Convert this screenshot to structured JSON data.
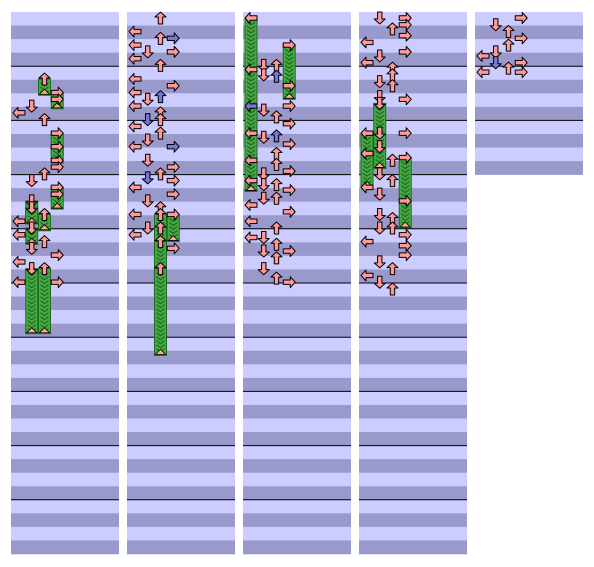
{
  "chart_data": {
    "type": "step-chart",
    "lanes": [
      "left",
      "down",
      "up",
      "right"
    ],
    "measures_per_column": 10,
    "rows_per_measure": 4,
    "colors": {
      "stripe_light": "#ccccff",
      "stripe_dark": "#9999cc",
      "quarter_note": "#ff9999",
      "eighth_note": "#7777dd",
      "hold_body": "#44aa44",
      "hold_tail": "#ffaa88",
      "measure_line": "#000000"
    },
    "columns": [
      {
        "measures": 10,
        "notes": [
          {
            "row": 4.5,
            "lane": "up",
            "kind": "hold",
            "length": 0.3
          },
          {
            "row": 5.5,
            "lane": "right",
            "kind": "hold",
            "length": 0.3
          },
          {
            "row": 6.0,
            "lane": "right"
          },
          {
            "row": 6.5,
            "lane": "down"
          },
          {
            "row": 7.0,
            "lane": "left"
          },
          {
            "row": 7.5,
            "lane": "up"
          },
          {
            "row": 8.5,
            "lane": "right",
            "kind": "hold",
            "length": 0.4
          },
          {
            "row": 9.5,
            "lane": "right",
            "kind": "hold",
            "length": 0.3
          },
          {
            "row": 10.5,
            "lane": "right"
          },
          {
            "row": 11.0,
            "lane": "right"
          },
          {
            "row": 11.5,
            "lane": "up"
          },
          {
            "row": 12.0,
            "lane": "down"
          },
          {
            "row": 12.5,
            "lane": "right",
            "kind": "hold",
            "length": 0.4
          },
          {
            "row": 13.0,
            "lane": "right"
          },
          {
            "row": 13.5,
            "lane": "down",
            "kind": "hold",
            "length": 0.3
          },
          {
            "row": 14.0,
            "lane": "down",
            "kind": "hold",
            "length": 0.3
          },
          {
            "row": 14.5,
            "lane": "up",
            "kind": "hold",
            "length": 0.3
          },
          {
            "row": 15.0,
            "lane": "left"
          },
          {
            "row": 15.5,
            "lane": "down",
            "kind": "hold",
            "length": 0.3
          },
          {
            "row": 16.0,
            "lane": "left"
          },
          {
            "row": 16.5,
            "lane": "up"
          },
          {
            "row": 17.0,
            "lane": "down"
          },
          {
            "row": 17.5,
            "lane": "right"
          },
          {
            "row": 18.0,
            "lane": "left"
          },
          {
            "row": 18.5,
            "lane": "down",
            "kind": "hold",
            "length": 1.2
          },
          {
            "row": 18.5,
            "lane": "up",
            "kind": "hold",
            "length": 1.2
          },
          {
            "row": 19.5,
            "lane": "left"
          },
          {
            "row": 19.5,
            "lane": "right"
          }
        ]
      },
      {
        "measures": 10,
        "notes": [
          {
            "row": 0.0,
            "lane": "up"
          },
          {
            "row": 1.0,
            "lane": "left"
          },
          {
            "row": 1.5,
            "lane": "up"
          },
          {
            "row": 1.5,
            "lane": "right",
            "eighth": true
          },
          {
            "row": 2.0,
            "lane": "left"
          },
          {
            "row": 2.5,
            "lane": "down"
          },
          {
            "row": 2.5,
            "lane": "right"
          },
          {
            "row": 3.0,
            "lane": "left"
          },
          {
            "row": 3.5,
            "lane": "up"
          },
          {
            "row": 4.5,
            "lane": "left"
          },
          {
            "row": 5.0,
            "lane": "right"
          },
          {
            "row": 5.5,
            "lane": "left"
          },
          {
            "row": 6.0,
            "lane": "down"
          },
          {
            "row": 5.8,
            "lane": "up",
            "eighth": true
          },
          {
            "row": 6.5,
            "lane": "left"
          },
          {
            "row": 7.0,
            "lane": "up"
          },
          {
            "row": 7.5,
            "lane": "down",
            "eighth": true
          },
          {
            "row": 7.5,
            "lane": "up"
          },
          {
            "row": 8.0,
            "lane": "left"
          },
          {
            "row": 8.5,
            "lane": "up"
          },
          {
            "row": 9.0,
            "lane": "down"
          },
          {
            "row": 9.5,
            "lane": "left"
          },
          {
            "row": 9.5,
            "lane": "right",
            "eighth": true
          },
          {
            "row": 10.5,
            "lane": "down"
          },
          {
            "row": 11.0,
            "lane": "right"
          },
          {
            "row": 11.5,
            "lane": "up"
          },
          {
            "row": 11.8,
            "lane": "down",
            "eighth": true
          },
          {
            "row": 12.0,
            "lane": "right"
          },
          {
            "row": 12.5,
            "lane": "left"
          },
          {
            "row": 13.0,
            "lane": "right"
          },
          {
            "row": 13.5,
            "lane": "down"
          },
          {
            "row": 14.0,
            "lane": "up"
          },
          {
            "row": 14.5,
            "lane": "left"
          },
          {
            "row": 14.5,
            "lane": "right",
            "kind": "hold",
            "length": 0.5
          },
          {
            "row": 14.5,
            "lane": "up",
            "kind": "hold",
            "length": 1.2
          },
          {
            "row": 15.5,
            "lane": "down"
          },
          {
            "row": 15.5,
            "lane": "up"
          },
          {
            "row": 16.0,
            "lane": "left"
          },
          {
            "row": 16.5,
            "lane": "up",
            "kind": "hold",
            "length": 1.4
          },
          {
            "row": 17.0,
            "lane": "right"
          },
          {
            "row": 18.5,
            "lane": "up",
            "kind": "hold",
            "length": 1.6
          }
        ]
      },
      {
        "measures": 10,
        "notes": [
          {
            "row": 0.0,
            "lane": "left",
            "kind": "hold",
            "length": 3.2
          },
          {
            "row": 2.0,
            "lane": "right",
            "kind": "hold",
            "length": 1.0
          },
          {
            "row": 3.5,
            "lane": "down"
          },
          {
            "row": 3.5,
            "lane": "up"
          },
          {
            "row": 3.8,
            "lane": "left"
          },
          {
            "row": 4.2,
            "lane": "down"
          },
          {
            "row": 4.3,
            "lane": "up",
            "eighth": true
          },
          {
            "row": 5.0,
            "lane": "right"
          },
          {
            "row": 6.5,
            "lane": "left",
            "eighth": true
          },
          {
            "row": 6.8,
            "lane": "down"
          },
          {
            "row": 7.3,
            "lane": "up"
          },
          {
            "row": 6.5,
            "lane": "right"
          },
          {
            "row": 7.8,
            "lane": "right"
          },
          {
            "row": 8.5,
            "lane": "left"
          },
          {
            "row": 8.8,
            "lane": "down"
          },
          {
            "row": 8.7,
            "lane": "up",
            "eighth": true
          },
          {
            "row": 9.3,
            "lane": "right"
          },
          {
            "row": 10.0,
            "lane": "up"
          },
          {
            "row": 10.5,
            "lane": "left"
          },
          {
            "row": 10.8,
            "lane": "up"
          },
          {
            "row": 11.3,
            "lane": "right"
          },
          {
            "row": 11.5,
            "lane": "down"
          },
          {
            "row": 12.0,
            "lane": "left"
          },
          {
            "row": 12.3,
            "lane": "down"
          },
          {
            "row": 12.3,
            "lane": "up"
          },
          {
            "row": 12.7,
            "lane": "right"
          },
          {
            "row": 13.3,
            "lane": "up"
          },
          {
            "row": 13.3,
            "lane": "down"
          },
          {
            "row": 13.8,
            "lane": "left"
          },
          {
            "row": 14.3,
            "lane": "right"
          },
          {
            "row": 15.0,
            "lane": "left"
          },
          {
            "row": 15.5,
            "lane": "up"
          },
          {
            "row": 16.2,
            "lane": "left"
          },
          {
            "row": 16.2,
            "lane": "down"
          },
          {
            "row": 16.7,
            "lane": "up"
          },
          {
            "row": 17.2,
            "lane": "down"
          },
          {
            "row": 17.2,
            "lane": "right"
          },
          {
            "row": 17.7,
            "lane": "up"
          },
          {
            "row": 18.5,
            "lane": "down"
          },
          {
            "row": 19.2,
            "lane": "up"
          },
          {
            "row": 19.5,
            "lane": "right"
          }
        ]
      },
      {
        "measures": 10,
        "notes": [
          {
            "row": 0.0,
            "lane": "right"
          },
          {
            "row": 0.0,
            "lane": "down"
          },
          {
            "row": 0.5,
            "lane": "right"
          },
          {
            "row": 0.8,
            "lane": "up"
          },
          {
            "row": 1.3,
            "lane": "right"
          },
          {
            "row": 1.8,
            "lane": "left"
          },
          {
            "row": 2.5,
            "lane": "right"
          },
          {
            "row": 2.8,
            "lane": "down"
          },
          {
            "row": 3.3,
            "lane": "left"
          },
          {
            "row": 3.7,
            "lane": "up"
          },
          {
            "row": 4.2,
            "lane": "up"
          },
          {
            "row": 4.7,
            "lane": "down"
          },
          {
            "row": 5.0,
            "lane": "up"
          },
          {
            "row": 5.8,
            "lane": "down"
          },
          {
            "row": 6.0,
            "lane": "right"
          },
          {
            "row": 6.3,
            "lane": "down",
            "kind": "hold",
            "length": 1.2
          },
          {
            "row": 8.5,
            "lane": "left",
            "kind": "hold",
            "length": 1.0
          },
          {
            "row": 8.5,
            "lane": "down"
          },
          {
            "row": 8.5,
            "lane": "right"
          },
          {
            "row": 9.5,
            "lane": "down"
          },
          {
            "row": 10.0,
            "lane": "left"
          },
          {
            "row": 10.5,
            "lane": "up"
          },
          {
            "row": 10.3,
            "lane": "right",
            "kind": "hold",
            "length": 1.3
          },
          {
            "row": 11.5,
            "lane": "down"
          },
          {
            "row": 12.0,
            "lane": "up"
          },
          {
            "row": 12.5,
            "lane": "left"
          },
          {
            "row": 13.0,
            "lane": "down"
          },
          {
            "row": 13.5,
            "lane": "right"
          },
          {
            "row": 14.5,
            "lane": "down"
          },
          {
            "row": 14.8,
            "lane": "up"
          },
          {
            "row": 15.5,
            "lane": "down"
          },
          {
            "row": 15.5,
            "lane": "up"
          },
          {
            "row": 16.0,
            "lane": "right"
          },
          {
            "row": 16.5,
            "lane": "left"
          },
          {
            "row": 16.8,
            "lane": "right"
          },
          {
            "row": 17.5,
            "lane": "right"
          },
          {
            "row": 18.0,
            "lane": "down"
          },
          {
            "row": 18.5,
            "lane": "up"
          },
          {
            "row": 19.0,
            "lane": "left"
          },
          {
            "row": 19.5,
            "lane": "down"
          },
          {
            "row": 20.0,
            "lane": "up"
          }
        ]
      },
      {
        "measures": 3,
        "notes": [
          {
            "row": 0.0,
            "lane": "right"
          },
          {
            "row": 0.5,
            "lane": "down"
          },
          {
            "row": 1.0,
            "lane": "up"
          },
          {
            "row": 1.5,
            "lane": "right"
          },
          {
            "row": 2.0,
            "lane": "up"
          },
          {
            "row": 2.5,
            "lane": "down"
          },
          {
            "row": 2.8,
            "lane": "left"
          },
          {
            "row": 3.3,
            "lane": "down",
            "eighth": true
          },
          {
            "row": 3.3,
            "lane": "right"
          },
          {
            "row": 3.7,
            "lane": "up"
          },
          {
            "row": 4.0,
            "lane": "left"
          },
          {
            "row": 4.0,
            "lane": "right"
          }
        ]
      }
    ]
  }
}
